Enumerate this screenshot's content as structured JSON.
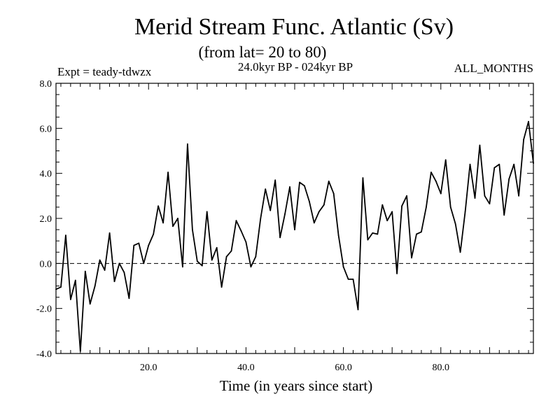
{
  "chart_data": {
    "type": "line",
    "title": "Merid Stream Func. Atlantic (Sv)",
    "subtitle": "(from lat= 20 to 80)",
    "experiment": "Expt = teady-tdwzx",
    "period": "24.0kyr BP - 024kyr BP",
    "months": "ALL_MONTHS",
    "xlabel": "Time (in years since start)",
    "ylabel": "",
    "xlim": [
      1,
      99
    ],
    "ylim": [
      -4.0,
      8.0
    ],
    "xticks": [
      20,
      40,
      60,
      80
    ],
    "xtick_labels": [
      "20.0",
      "40.0",
      "60.0",
      "80.0"
    ],
    "yticks": [
      -4,
      -2,
      0,
      2,
      4,
      6,
      8
    ],
    "ytick_labels": [
      "-4.0",
      "-2.0",
      "0.0",
      "2.0",
      "4.0",
      "6.0",
      "8.0"
    ],
    "reference_line": 0.0,
    "series": [
      {
        "name": "Merid Stream Func. Atlantic",
        "x": [
          1,
          2,
          3,
          4,
          5,
          6,
          7,
          8,
          9,
          10,
          11,
          12,
          13,
          14,
          15,
          16,
          17,
          18,
          19,
          20,
          21,
          22,
          23,
          24,
          25,
          26,
          27,
          28,
          29,
          30,
          31,
          32,
          33,
          34,
          35,
          36,
          37,
          38,
          39,
          40,
          41,
          42,
          43,
          44,
          45,
          46,
          47,
          48,
          49,
          50,
          51,
          52,
          53,
          54,
          55,
          56,
          57,
          58,
          59,
          60,
          61,
          62,
          63,
          64,
          65,
          66,
          67,
          68,
          69,
          70,
          71,
          72,
          73,
          74,
          75,
          76,
          77,
          78,
          79,
          80,
          81,
          82,
          83,
          84,
          85,
          86,
          87,
          88,
          89,
          90,
          91,
          92,
          93,
          94,
          95,
          96,
          97,
          98,
          99
        ],
        "values": [
          -1.15,
          -1.05,
          1.25,
          -1.6,
          -0.75,
          -3.9,
          -0.35,
          -1.8,
          -1.0,
          0.15,
          -0.3,
          1.35,
          -0.8,
          0.0,
          -0.4,
          -1.55,
          0.8,
          0.9,
          0.0,
          0.8,
          1.3,
          2.55,
          1.8,
          4.05,
          1.65,
          2.0,
          -0.15,
          5.3,
          1.5,
          0.1,
          -0.1,
          2.3,
          0.15,
          0.7,
          -1.05,
          0.3,
          0.55,
          1.9,
          1.45,
          0.95,
          -0.15,
          0.3,
          2.0,
          3.3,
          2.35,
          3.7,
          1.15,
          2.2,
          3.4,
          1.5,
          3.6,
          3.45,
          2.75,
          1.8,
          2.3,
          2.6,
          3.65,
          3.1,
          1.25,
          -0.15,
          -0.7,
          -0.7,
          -2.05,
          3.8,
          1.05,
          1.35,
          1.3,
          2.6,
          1.9,
          2.3,
          -0.45,
          2.55,
          3.0,
          0.25,
          1.3,
          1.4,
          2.5,
          4.05,
          3.65,
          3.1,
          4.6,
          2.5,
          1.75,
          0.5,
          2.3,
          4.4,
          2.9,
          5.25,
          3.0,
          2.65,
          4.25,
          4.4,
          2.15,
          3.75,
          4.4,
          3.0,
          5.5,
          6.3,
          4.45
        ]
      }
    ]
  }
}
